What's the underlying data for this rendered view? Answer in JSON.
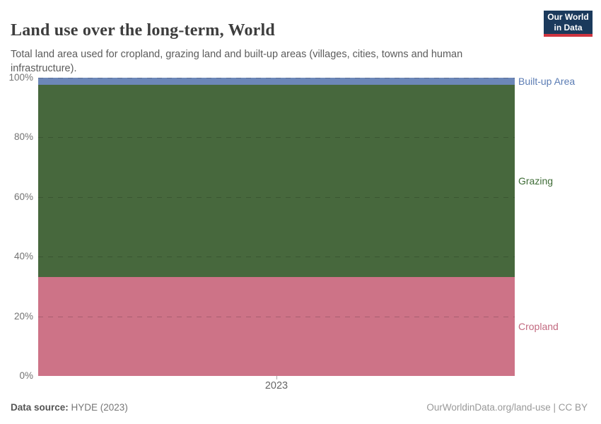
{
  "header": {
    "title": "Land use over the long-term, World",
    "subtitle": "Total land area used for cropland, grazing land and built-up areas (villages, cities, towns and human infrastructure).",
    "logo": {
      "line1": "Our World",
      "line2": "in Data",
      "bg_color": "#1b3a5c",
      "accent_color": "#cf3540"
    }
  },
  "chart_data": {
    "type": "area",
    "stacked": true,
    "relative_mode": true,
    "title": "Land use over the long-term, World",
    "x_tick_label": "2023",
    "ylim": [
      0,
      100
    ],
    "ytick_labels": [
      "0%",
      "20%",
      "40%",
      "60%",
      "80%",
      "100%"
    ],
    "yticks": [
      0,
      20,
      40,
      60,
      80,
      100
    ],
    "grid": "horizontal-dashed",
    "legend_position": "right-of-plot",
    "series": [
      {
        "name": "Cropland",
        "value_pct": 33.2,
        "color": "#CD7387",
        "label_color": "#c26a80"
      },
      {
        "name": "Grazing",
        "value_pct": 64.5,
        "color": "#47683D",
        "label_color": "#3d6b35"
      },
      {
        "name": "Built-up Area",
        "value_pct": 2.3,
        "color": "#6C87B8",
        "label_color": "#5b7cb4"
      }
    ]
  },
  "footer": {
    "source_label": "Data source:",
    "source_value": " HYDE (2023)",
    "citation": "OurWorldinData.org/land-use | CC BY"
  }
}
